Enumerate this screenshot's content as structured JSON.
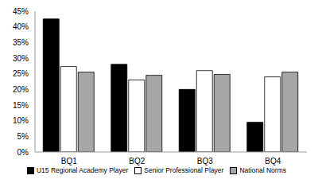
{
  "chart_data": {
    "type": "bar",
    "categories": [
      "BQ1",
      "BQ2",
      "BQ3",
      "BQ4"
    ],
    "series": [
      {
        "name": "U15 Regional Academy Player",
        "color": "#000000",
        "values": [
          42.5,
          28,
          20,
          9.5
        ]
      },
      {
        "name": "Senior Professional Player",
        "color": "#ffffff",
        "values": [
          27.3,
          23,
          26,
          24
        ]
      },
      {
        "name": "National Norms",
        "color": "#a6a6a6",
        "values": [
          25.5,
          24.5,
          24.8,
          25.5
        ]
      }
    ],
    "ylim": [
      0,
      45
    ],
    "yticks": [
      {
        "value": 0,
        "label": "0%"
      },
      {
        "value": 5,
        "label": "5%"
      },
      {
        "value": 10,
        "label": "10%"
      },
      {
        "value": 15,
        "label": "15%"
      },
      {
        "value": 20,
        "label": "20%"
      },
      {
        "value": 25,
        "label": "25%"
      },
      {
        "value": 30,
        "label": "30%"
      },
      {
        "value": 35,
        "label": "35%"
      },
      {
        "value": 40,
        "label": "40%"
      },
      {
        "value": 45,
        "label": "45%"
      }
    ],
    "grid": false,
    "legend": "bottom"
  }
}
